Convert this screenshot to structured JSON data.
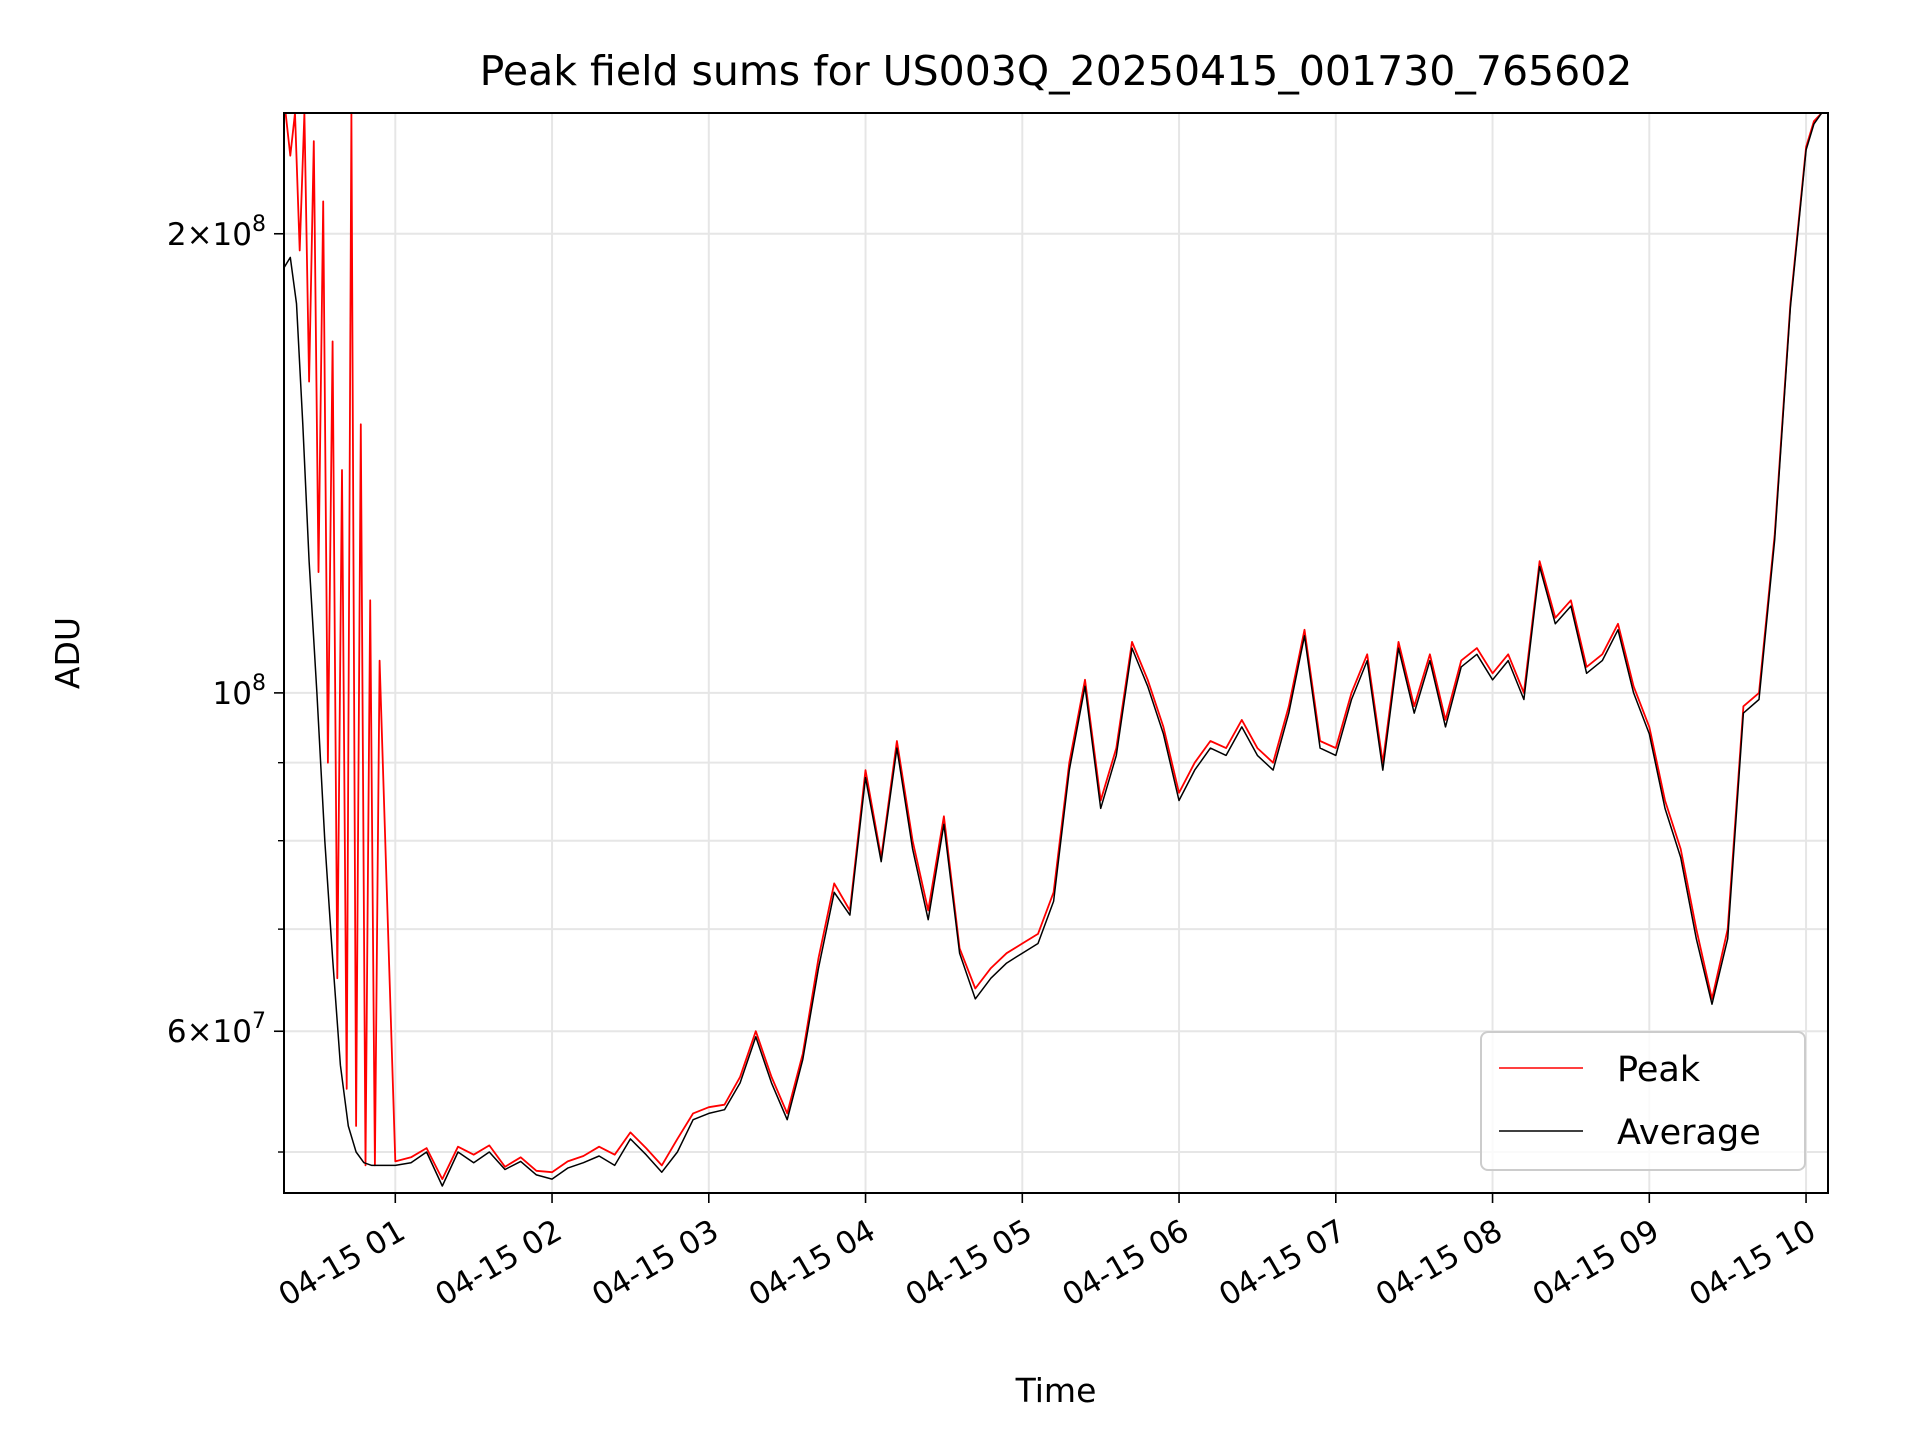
{
  "chart_data": {
    "type": "line",
    "title": "Peak field sums for US003Q_20250415_001730_765602",
    "xlabel": "Time",
    "ylabel": "ADU",
    "y_scale": "log",
    "x_unit": "hours on 2025-04-15",
    "xlim": [
      0.29,
      10.14
    ],
    "ylim": [
      47000000,
      240000000
    ],
    "grid": true,
    "legend_position": "lower right",
    "x_ticks": [
      {
        "value": 1,
        "label": "04-15 01"
      },
      {
        "value": 2,
        "label": "04-15 02"
      },
      {
        "value": 3,
        "label": "04-15 03"
      },
      {
        "value": 4,
        "label": "04-15 04"
      },
      {
        "value": 5,
        "label": "04-15 05"
      },
      {
        "value": 6,
        "label": "04-15 06"
      },
      {
        "value": 7,
        "label": "04-15 07"
      },
      {
        "value": 8,
        "label": "04-15 08"
      },
      {
        "value": 9,
        "label": "04-15 09"
      },
      {
        "value": 10,
        "label": "04-15 10"
      }
    ],
    "y_ticks": [
      {
        "value": 60000000,
        "base": "6",
        "exp": "7"
      },
      {
        "value": 100000000,
        "base": "",
        "exp": "8"
      },
      {
        "value": 200000000,
        "base": "2",
        "exp": "8"
      }
    ],
    "y_minor_ticks": [
      50000000,
      70000000,
      80000000,
      90000000
    ],
    "series": [
      {
        "name": "Peak",
        "color": "#ff0000",
        "x": [
          0.3,
          0.33,
          0.36,
          0.39,
          0.42,
          0.45,
          0.48,
          0.51,
          0.54,
          0.57,
          0.6,
          0.63,
          0.66,
          0.69,
          0.72,
          0.75,
          0.78,
          0.81,
          0.84,
          0.87,
          0.9,
          1.0,
          1.1,
          1.2,
          1.3,
          1.4,
          1.5,
          1.6,
          1.7,
          1.8,
          1.9,
          2.0,
          2.1,
          2.2,
          2.3,
          2.4,
          2.5,
          2.6,
          2.7,
          2.8,
          2.9,
          3.0,
          3.1,
          3.2,
          3.3,
          3.4,
          3.5,
          3.6,
          3.7,
          3.8,
          3.9,
          4.0,
          4.1,
          4.2,
          4.3,
          4.4,
          4.5,
          4.6,
          4.7,
          4.8,
          4.9,
          5.0,
          5.1,
          5.2,
          5.3,
          5.4,
          5.5,
          5.6,
          5.7,
          5.8,
          5.9,
          6.0,
          6.1,
          6.2,
          6.3,
          6.4,
          6.5,
          6.6,
          6.7,
          6.8,
          6.9,
          7.0,
          7.1,
          7.2,
          7.3,
          7.4,
          7.5,
          7.6,
          7.7,
          7.8,
          7.9,
          8.0,
          8.1,
          8.2,
          8.3,
          8.4,
          8.5,
          8.6,
          8.7,
          8.8,
          8.9,
          9.0,
          9.1,
          9.2,
          9.3,
          9.4,
          9.5,
          9.6,
          9.7,
          9.8,
          9.9,
          10.0,
          10.05,
          10.1
        ],
        "values": [
          240000000,
          225000000,
          240000000,
          195000000,
          240000000,
          160000000,
          230000000,
          120000000,
          210000000,
          90000000,
          170000000,
          65000000,
          140000000,
          55000000,
          240000000,
          52000000,
          150000000,
          49000000,
          115000000,
          49000000,
          105000000,
          49300000,
          49600000,
          50300000,
          48000000,
          50400000,
          49800000,
          50500000,
          48900000,
          49600000,
          48600000,
          48500000,
          49300000,
          49700000,
          50400000,
          49800000,
          51500000,
          50300000,
          49000000,
          51000000,
          53000000,
          53500000,
          53700000,
          56000000,
          60000000,
          56000000,
          53000000,
          58000000,
          67000000,
          75000000,
          72000000,
          89000000,
          78000000,
          93000000,
          80000000,
          72000000,
          83000000,
          68000000,
          64000000,
          66000000,
          67500000,
          68500000,
          69500000,
          74000000,
          90000000,
          102000000,
          85000000,
          92000000,
          108000000,
          102000000,
          95000000,
          86000000,
          90000000,
          93000000,
          92000000,
          96000000,
          92000000,
          90000000,
          98000000,
          110000000,
          93000000,
          92000000,
          100000000,
          106000000,
          90000000,
          108000000,
          98000000,
          106000000,
          96000000,
          105000000,
          107000000,
          103000000,
          106000000,
          100000000,
          122000000,
          112000000,
          115000000,
          104000000,
          106000000,
          111000000,
          101000000,
          95000000,
          85000000,
          79000000,
          70000000,
          63000000,
          70000000,
          98000000,
          100000000,
          127000000,
          180000000,
          228000000,
          237000000,
          240000000
        ]
      },
      {
        "name": "Average",
        "color": "#000000",
        "x": [
          0.29,
          0.33,
          0.37,
          0.41,
          0.45,
          0.5,
          0.55,
          0.6,
          0.65,
          0.7,
          0.75,
          0.8,
          0.85,
          0.9,
          1.0,
          1.1,
          1.2,
          1.3,
          1.4,
          1.5,
          1.6,
          1.7,
          1.8,
          1.9,
          2.0,
          2.1,
          2.2,
          2.3,
          2.4,
          2.5,
          2.6,
          2.7,
          2.8,
          2.9,
          3.0,
          3.1,
          3.2,
          3.3,
          3.4,
          3.5,
          3.6,
          3.7,
          3.8,
          3.9,
          4.0,
          4.1,
          4.2,
          4.3,
          4.4,
          4.5,
          4.6,
          4.7,
          4.8,
          4.9,
          5.0,
          5.1,
          5.2,
          5.3,
          5.4,
          5.5,
          5.6,
          5.7,
          5.8,
          5.9,
          6.0,
          6.1,
          6.2,
          6.3,
          6.4,
          6.5,
          6.6,
          6.7,
          6.8,
          6.9,
          7.0,
          7.1,
          7.2,
          7.3,
          7.4,
          7.5,
          7.6,
          7.7,
          7.8,
          7.9,
          8.0,
          8.1,
          8.2,
          8.3,
          8.4,
          8.5,
          8.6,
          8.7,
          8.8,
          8.9,
          9.0,
          9.1,
          9.2,
          9.3,
          9.4,
          9.5,
          9.6,
          9.7,
          9.8,
          9.9,
          10.0,
          10.05,
          10.1
        ],
        "values": [
          190000000,
          193000000,
          180000000,
          150000000,
          122000000,
          100000000,
          80000000,
          67000000,
          57000000,
          52000000,
          50000000,
          49200000,
          49000000,
          49000000,
          49000000,
          49200000,
          50000000,
          47500000,
          50000000,
          49200000,
          50000000,
          48700000,
          49300000,
          48300000,
          48000000,
          48800000,
          49200000,
          49700000,
          49000000,
          51000000,
          49800000,
          48500000,
          50000000,
          52500000,
          53000000,
          53300000,
          55500000,
          59500000,
          55500000,
          52500000,
          57500000,
          66000000,
          74000000,
          71500000,
          88000000,
          77500000,
          92000000,
          79000000,
          71000000,
          82000000,
          67500000,
          63000000,
          65000000,
          66500000,
          67500000,
          68500000,
          73000000,
          89000000,
          101000000,
          84000000,
          91000000,
          107000000,
          101000000,
          94000000,
          85000000,
          89000000,
          92000000,
          91000000,
          95000000,
          91000000,
          89000000,
          97000000,
          109000000,
          92000000,
          91000000,
          99000000,
          105000000,
          89000000,
          107000000,
          97000000,
          105000000,
          95000000,
          104000000,
          106000000,
          102000000,
          105000000,
          99000000,
          121000000,
          111000000,
          114000000,
          103000000,
          105000000,
          110000000,
          100000000,
          94000000,
          84000000,
          78000000,
          69000000,
          62500000,
          69000000,
          97000000,
          99000000,
          126000000,
          179000000,
          227000000,
          236000000,
          240000000
        ]
      }
    ]
  }
}
